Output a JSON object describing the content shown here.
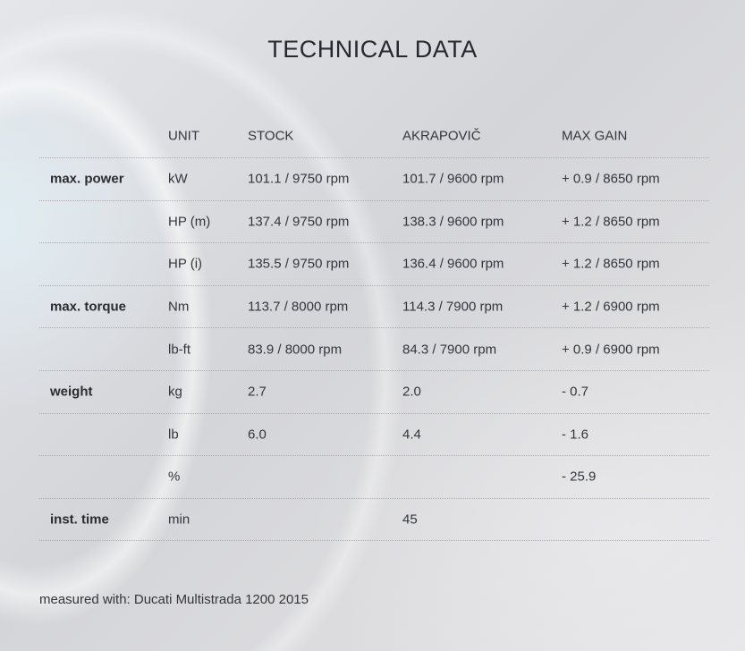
{
  "title": "TECHNICAL DATA",
  "table": {
    "headers": [
      "",
      "UNIT",
      "STOCK",
      "AKRAPOVIČ",
      "MAX GAIN"
    ],
    "rows": [
      [
        "max. power",
        "kW",
        "101.1 / 9750 rpm",
        "101.7 / 9600 rpm",
        "+ 0.9 / 8650 rpm"
      ],
      [
        "",
        "HP (m)",
        "137.4 / 9750 rpm",
        "138.3 / 9600 rpm",
        "+ 1.2 / 8650 rpm"
      ],
      [
        "",
        "HP (i)",
        "135.5 / 9750 rpm",
        "136.4 / 9600 rpm",
        "+ 1.2 / 8650 rpm"
      ],
      [
        "max. torque",
        "Nm",
        "113.7 / 8000 rpm",
        "114.3 / 7900 rpm",
        "+ 1.2 / 6900 rpm"
      ],
      [
        "",
        "lb-ft",
        "83.9 / 8000 rpm",
        "84.3 / 7900 rpm",
        "+ 0.9 / 6900 rpm"
      ],
      [
        "weight",
        "kg",
        "2.7",
        "2.0",
        "- 0.7"
      ],
      [
        "",
        "lb",
        "6.0",
        "4.4",
        "- 1.6"
      ],
      [
        "",
        "%",
        "",
        "",
        "- 25.9"
      ],
      [
        "inst. time",
        "min",
        "",
        "45",
        ""
      ]
    ]
  },
  "footnote": "measured with: Ducati Multistrada 1200 2015"
}
